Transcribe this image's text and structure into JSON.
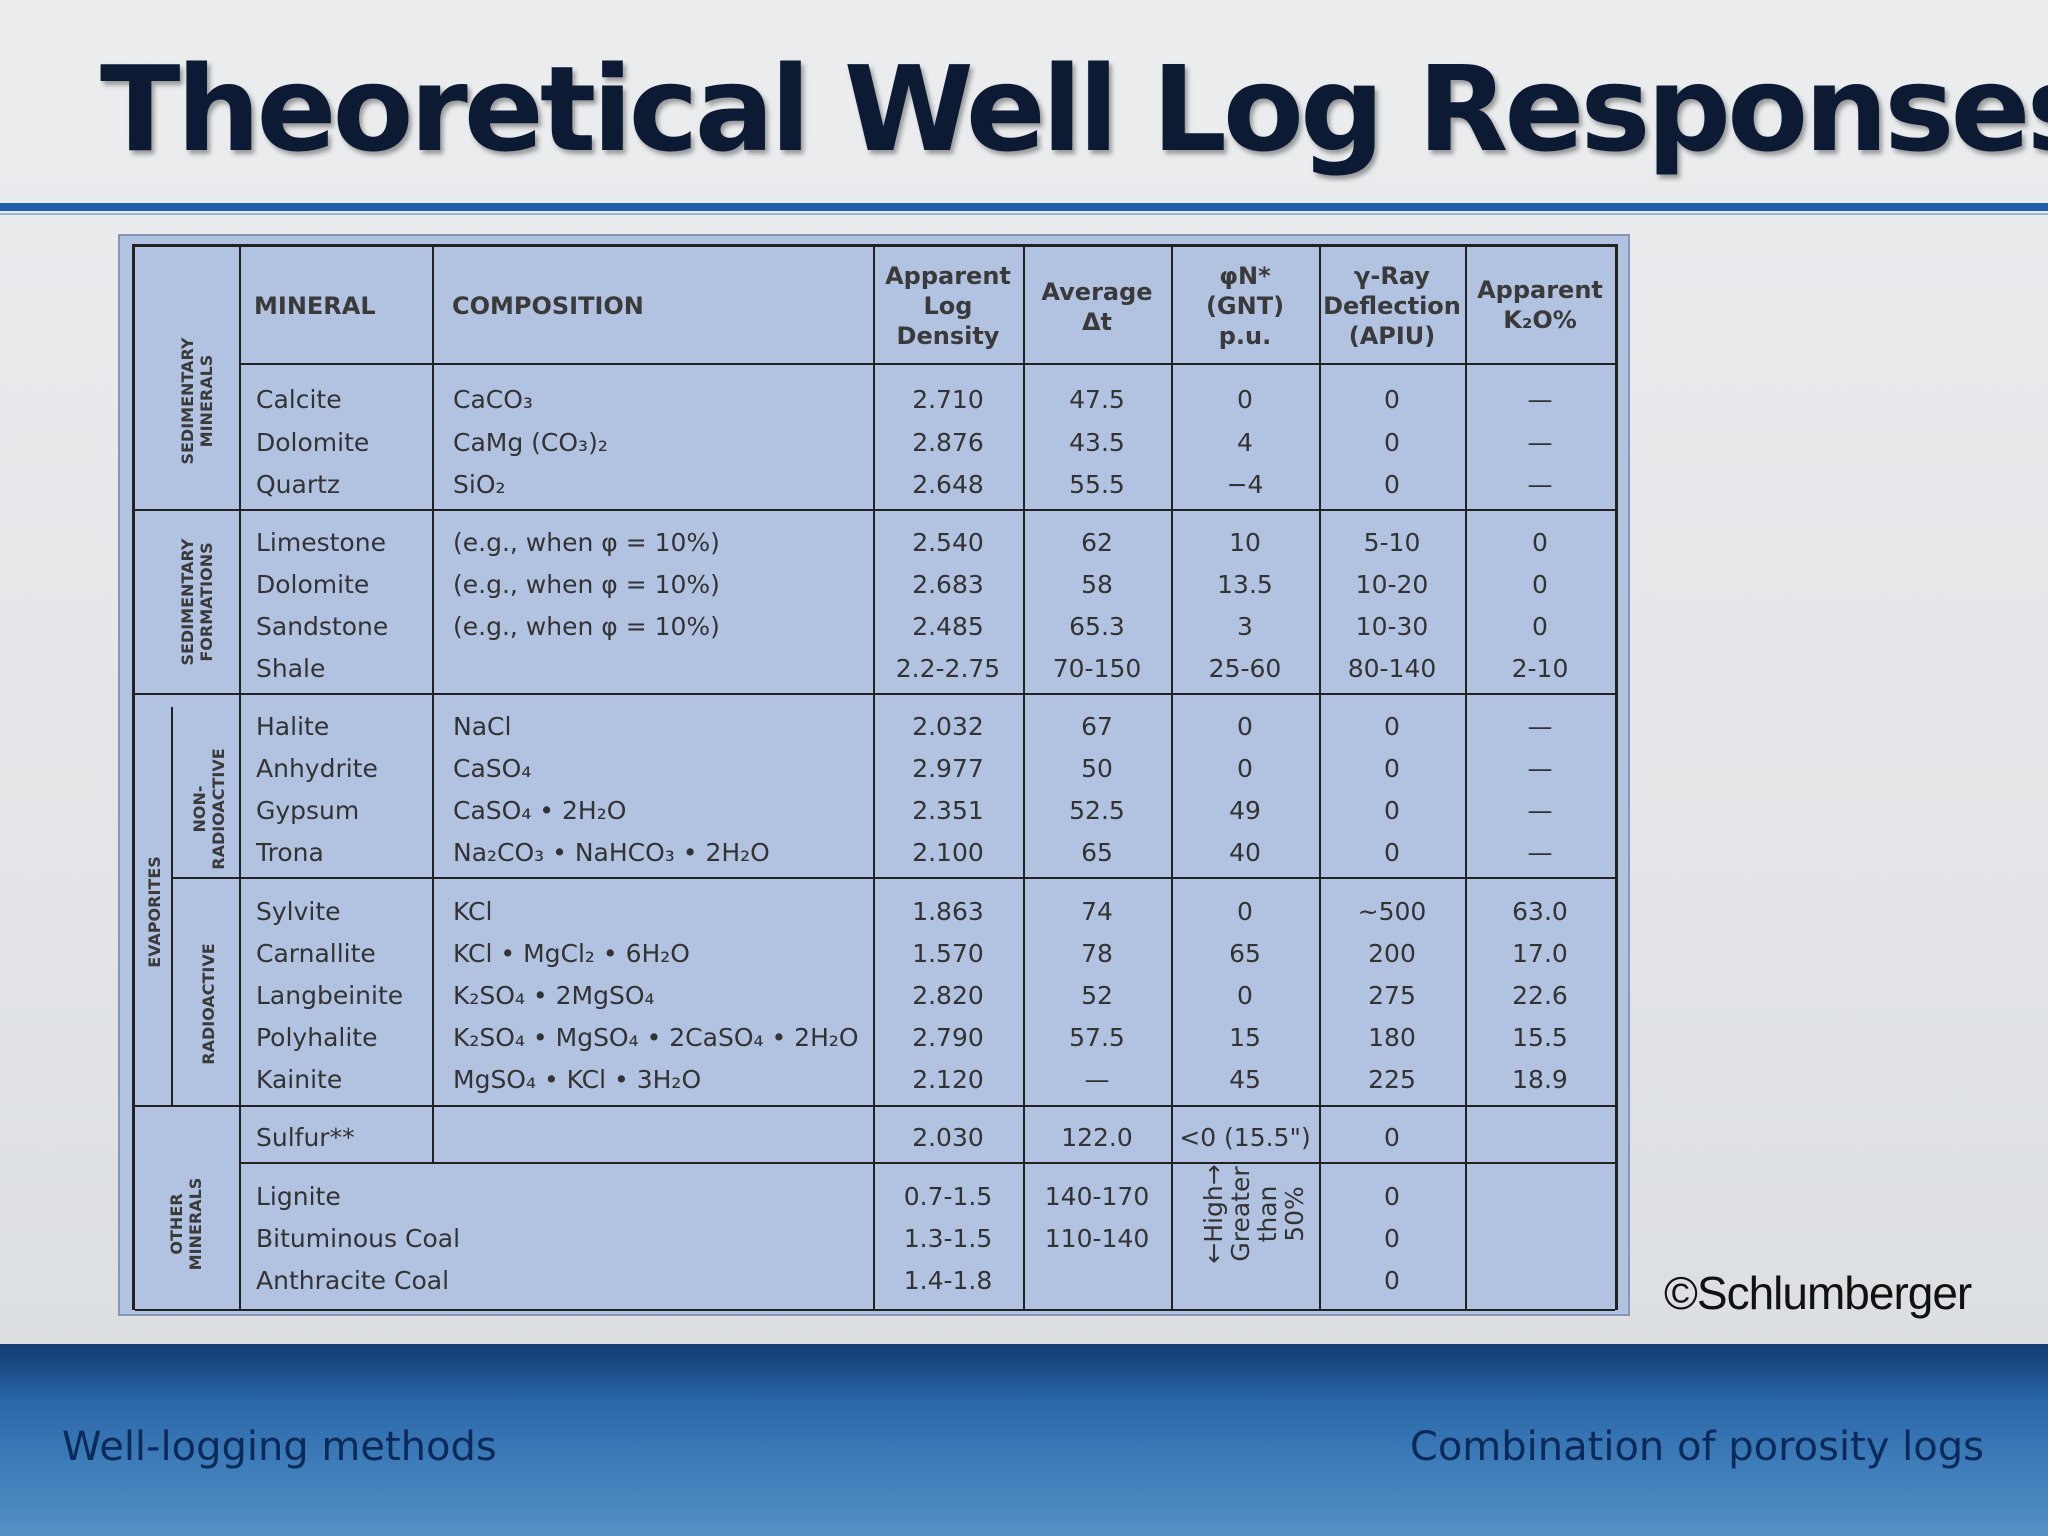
{
  "slide": {
    "title": "Theoretical Well Log Responses",
    "copyright": "©Schlumberger",
    "footer_left": "Well-logging methods",
    "footer_right": "Combination of porosity logs"
  },
  "colors": {
    "title_rule": "#1f5ea6",
    "table_background": "#b2c3e2",
    "footer_band": "#2a67a8",
    "footer_text": "#0b2a5a"
  },
  "table": {
    "headers": {
      "mineral": "MINERAL",
      "composition": "COMPOSITION",
      "density": [
        "Apparent",
        "Log",
        "Density"
      ],
      "dt": [
        "Average",
        "Δt"
      ],
      "phin": [
        "φN*",
        "(GNT)",
        "p.u."
      ],
      "gamma": [
        "γ-Ray",
        "Deflection",
        "(APIU)"
      ],
      "k2o": [
        "Apparent",
        "K₂O%"
      ]
    },
    "groups": {
      "sed_minerals": [
        "SEDIMENTARY",
        "MINERALS"
      ],
      "sed_formations": [
        "SEDIMENTARY",
        "FORMATIONS"
      ],
      "evaporites": "EVAPORITES",
      "non_radioactive": [
        "NON-",
        "RADIOACTIVE"
      ],
      "radioactive": "RADIOACTIVE",
      "other": [
        "OTHER",
        "MINERALS"
      ]
    },
    "rows": [
      {
        "mineral": "Calcite",
        "composition": "CaCO₃",
        "density": "2.710",
        "dt": "47.5",
        "phin": "0",
        "gamma": "0",
        "k2o": "—"
      },
      {
        "mineral": "Dolomite",
        "composition": "CaMg (CO₃)₂",
        "density": "2.876",
        "dt": "43.5",
        "phin": "4",
        "gamma": "0",
        "k2o": "—"
      },
      {
        "mineral": "Quartz",
        "composition": "SiO₂",
        "density": "2.648",
        "dt": "55.5",
        "phin": "−4",
        "gamma": "0",
        "k2o": "—"
      },
      {
        "mineral": "Limestone",
        "composition": "(e.g., when φ = 10%)",
        "density": "2.540",
        "dt": "62",
        "phin": "10",
        "gamma": "5-10",
        "k2o": "0"
      },
      {
        "mineral": "Dolomite",
        "composition": "(e.g., when φ = 10%)",
        "density": "2.683",
        "dt": "58",
        "phin": "13.5",
        "gamma": "10-20",
        "k2o": "0"
      },
      {
        "mineral": "Sandstone",
        "composition": "(e.g., when φ = 10%)",
        "density": "2.485",
        "dt": "65.3",
        "phin": "3",
        "gamma": "10-30",
        "k2o": "0"
      },
      {
        "mineral": "Shale",
        "composition": "",
        "density": "2.2-2.75",
        "dt": "70-150",
        "phin": "25-60",
        "gamma": "80-140",
        "k2o": "2-10"
      },
      {
        "mineral": "Halite",
        "composition": "NaCl",
        "density": "2.032",
        "dt": "67",
        "phin": "0",
        "gamma": "0",
        "k2o": "—"
      },
      {
        "mineral": "Anhydrite",
        "composition": "CaSO₄",
        "density": "2.977",
        "dt": "50",
        "phin": "0",
        "gamma": "0",
        "k2o": "—"
      },
      {
        "mineral": "Gypsum",
        "composition": "CaSO₄ • 2H₂O",
        "density": "2.351",
        "dt": "52.5",
        "phin": "49",
        "gamma": "0",
        "k2o": "—"
      },
      {
        "mineral": "Trona",
        "composition": "Na₂CO₃ • NaHCO₃ • 2H₂O",
        "density": "2.100",
        "dt": "65",
        "phin": "40",
        "gamma": "0",
        "k2o": "—"
      },
      {
        "mineral": "Sylvite",
        "composition": "KCl",
        "density": "1.863",
        "dt": "74",
        "phin": "0",
        "gamma": "~500",
        "k2o": "63.0"
      },
      {
        "mineral": "Carnallite",
        "composition": "KCl • MgCl₂ • 6H₂O",
        "density": "1.570",
        "dt": "78",
        "phin": "65",
        "gamma": "200",
        "k2o": "17.0"
      },
      {
        "mineral": "Langbeinite",
        "composition": "K₂SO₄ • 2MgSO₄",
        "density": "2.820",
        "dt": "52",
        "phin": "0",
        "gamma": "275",
        "k2o": "22.6"
      },
      {
        "mineral": "Polyhalite",
        "composition": "K₂SO₄ • MgSO₄ • 2CaSO₄ • 2H₂O",
        "density": "2.790",
        "dt": "57.5",
        "phin": "15",
        "gamma": "180",
        "k2o": "15.5"
      },
      {
        "mineral": "Kainite",
        "composition": "MgSO₄ • KCl • 3H₂O",
        "density": "2.120",
        "dt": "—",
        "phin": "45",
        "gamma": "225",
        "k2o": "18.9"
      },
      {
        "mineral": "Sulfur**",
        "composition": "",
        "density": "2.030",
        "dt": "122.0",
        "phin": "<0 (15.5\")",
        "gamma": "0",
        "k2o": ""
      },
      {
        "mineral": "Lignite",
        "composition": "",
        "density": "0.7-1.5",
        "dt": "140-170",
        "phin": "",
        "gamma": "0",
        "k2o": ""
      },
      {
        "mineral": "Bituminous Coal",
        "composition": "",
        "density": "1.3-1.5",
        "dt": "110-140",
        "phin": "",
        "gamma": "0",
        "k2o": ""
      },
      {
        "mineral": "Anthracite Coal",
        "composition": "",
        "density": "1.4-1.8",
        "dt": "",
        "phin": "",
        "gamma": "0",
        "k2o": ""
      }
    ],
    "coal_phin_note": [
      "←High→",
      "Greater",
      "than",
      "50%"
    ]
  }
}
